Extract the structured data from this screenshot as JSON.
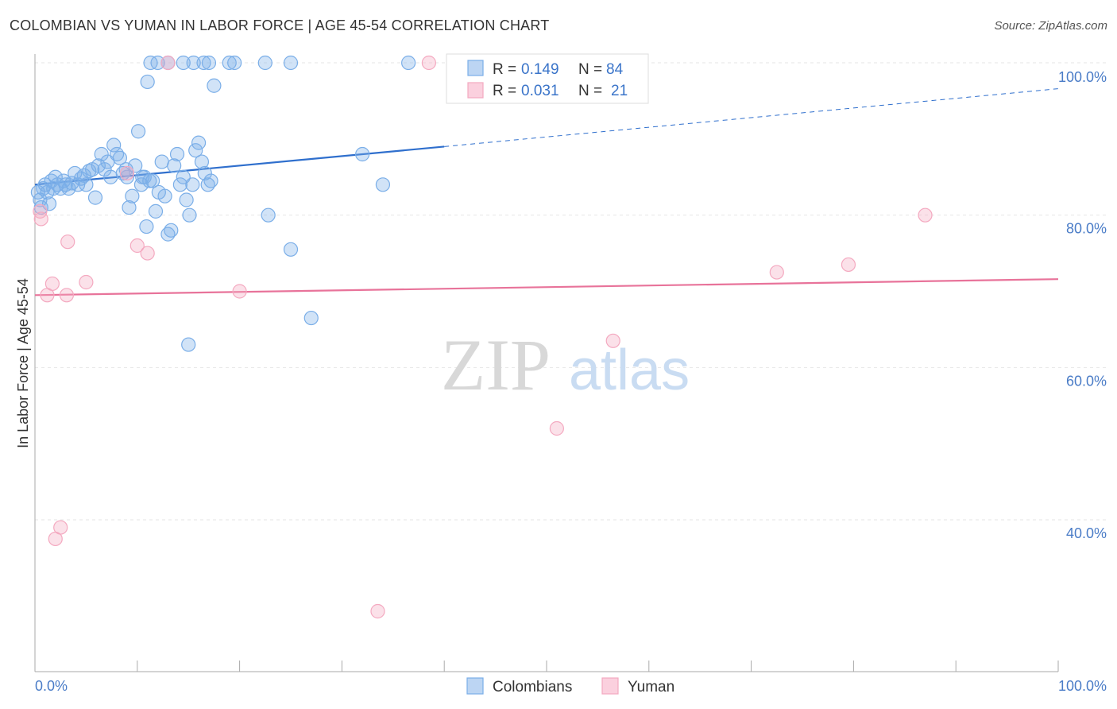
{
  "title": "COLOMBIAN VS YUMAN IN LABOR FORCE | AGE 45-54 CORRELATION CHART",
  "source": "Source: ZipAtlas.com",
  "watermark": {
    "zip": "ZIP",
    "atlas": "atlas"
  },
  "legend": {
    "r_label": "R =",
    "n_label": "N =",
    "colombians": {
      "r": "0.149",
      "n": "84"
    },
    "yuman": {
      "r": "0.031",
      "n": "21"
    }
  },
  "chart_data": {
    "type": "scatter",
    "title": "COLOMBIAN VS YUMAN IN LABOR FORCE | AGE 45-54 CORRELATION CHART",
    "xlabel": "",
    "ylabel": "In Labor Force | Age 45-54",
    "xlim": [
      0,
      100
    ],
    "ylim": [
      20,
      102
    ],
    "x_tick_labels": [
      "0.0%",
      "100.0%"
    ],
    "y_ticks": [
      40,
      60,
      80,
      100
    ],
    "y_tick_labels": [
      "40.0%",
      "60.0%",
      "80.0%",
      "100.0%"
    ],
    "grid": true,
    "legend_position": "top-center",
    "series": [
      {
        "name": "Colombians",
        "color": "#7aaee8",
        "trend_color": "#2f6fcd",
        "trend": {
          "x0": 0,
          "y0": 84.0,
          "x1": 40,
          "y1": 89.0,
          "dash_x1": 100,
          "dash_y1": 96.6
        },
        "points": [
          [
            0.3,
            83.0
          ],
          [
            0.5,
            82.0
          ],
          [
            0.6,
            81.0
          ],
          [
            0.8,
            83.5
          ],
          [
            1.0,
            84.0
          ],
          [
            1.2,
            83.0
          ],
          [
            1.4,
            81.5
          ],
          [
            1.6,
            84.5
          ],
          [
            1.8,
            83.5
          ],
          [
            2.0,
            85.0
          ],
          [
            2.2,
            84.0
          ],
          [
            2.5,
            83.5
          ],
          [
            2.8,
            84.5
          ],
          [
            3.0,
            84.0
          ],
          [
            3.3,
            83.5
          ],
          [
            3.6,
            84.2
          ],
          [
            3.9,
            85.5
          ],
          [
            4.2,
            84.0
          ],
          [
            4.5,
            84.8
          ],
          [
            4.8,
            85.2
          ],
          [
            5.0,
            84.0
          ],
          [
            5.3,
            85.8
          ],
          [
            5.6,
            86.0
          ],
          [
            5.9,
            82.3
          ],
          [
            6.2,
            86.5
          ],
          [
            6.5,
            88.0
          ],
          [
            6.8,
            86.0
          ],
          [
            7.1,
            87.0
          ],
          [
            7.4,
            85.0
          ],
          [
            7.7,
            89.2
          ],
          [
            8.0,
            88.0
          ],
          [
            8.3,
            87.5
          ],
          [
            8.6,
            85.5
          ],
          [
            8.9,
            86.0
          ],
          [
            9.2,
            81.0
          ],
          [
            9.5,
            82.5
          ],
          [
            9.8,
            86.5
          ],
          [
            10.1,
            91.0
          ],
          [
            10.4,
            84.0
          ],
          [
            10.7,
            85.0
          ],
          [
            10.9,
            78.5
          ],
          [
            11.2,
            84.5
          ],
          [
            11.5,
            84.5
          ],
          [
            11.8,
            80.5
          ],
          [
            12.1,
            83.0
          ],
          [
            12.4,
            87.0
          ],
          [
            12.7,
            82.5
          ],
          [
            13.0,
            77.5
          ],
          [
            13.3,
            78.0
          ],
          [
            13.6,
            86.5
          ],
          [
            13.9,
            88.0
          ],
          [
            14.2,
            84.0
          ],
          [
            14.5,
            85.0
          ],
          [
            14.8,
            82.0
          ],
          [
            15.1,
            80.0
          ],
          [
            15.4,
            84.0
          ],
          [
            15.7,
            88.5
          ],
          [
            16.0,
            89.5
          ],
          [
            16.3,
            87.0
          ],
          [
            16.6,
            85.5
          ],
          [
            16.9,
            84.0
          ],
          [
            17.2,
            84.5
          ],
          [
            11.0,
            97.5
          ],
          [
            17.5,
            97.0
          ],
          [
            11.3,
            100
          ],
          [
            13.0,
            100
          ],
          [
            14.5,
            100
          ],
          [
            15.5,
            100
          ],
          [
            17.0,
            100
          ],
          [
            19.5,
            100
          ],
          [
            22.5,
            100
          ],
          [
            25.0,
            100
          ],
          [
            22.8,
            80.0
          ],
          [
            25.0,
            75.5
          ],
          [
            27.0,
            66.5
          ],
          [
            15.0,
            63.0
          ],
          [
            32.0,
            88.0
          ],
          [
            34.0,
            84.0
          ],
          [
            36.5,
            100
          ],
          [
            19.0,
            100
          ],
          [
            12.0,
            100
          ],
          [
            16.5,
            100
          ],
          [
            10.5,
            85.0
          ],
          [
            9.0,
            85.0
          ]
        ]
      },
      {
        "name": "Yuman",
        "color": "#f4a9c0",
        "trend_color": "#e8739a",
        "trend": {
          "x0": 0,
          "y0": 69.5,
          "x1": 100,
          "y1": 71.6
        },
        "points": [
          [
            0.5,
            80.5
          ],
          [
            0.6,
            79.5
          ],
          [
            1.2,
            69.5
          ],
          [
            1.7,
            71.0
          ],
          [
            2.0,
            37.5
          ],
          [
            2.5,
            39.0
          ],
          [
            3.1,
            69.5
          ],
          [
            3.2,
            76.5
          ],
          [
            5.0,
            71.2
          ],
          [
            9.0,
            85.5
          ],
          [
            10.0,
            76.0
          ],
          [
            11.0,
            75.0
          ],
          [
            13.0,
            100
          ],
          [
            20.0,
            70.0
          ],
          [
            33.5,
            28.0
          ],
          [
            38.5,
            100
          ],
          [
            51.0,
            52.0
          ],
          [
            56.5,
            63.5
          ],
          [
            72.5,
            72.5
          ],
          [
            79.5,
            73.5
          ],
          [
            87.0,
            80.0
          ]
        ]
      }
    ]
  }
}
